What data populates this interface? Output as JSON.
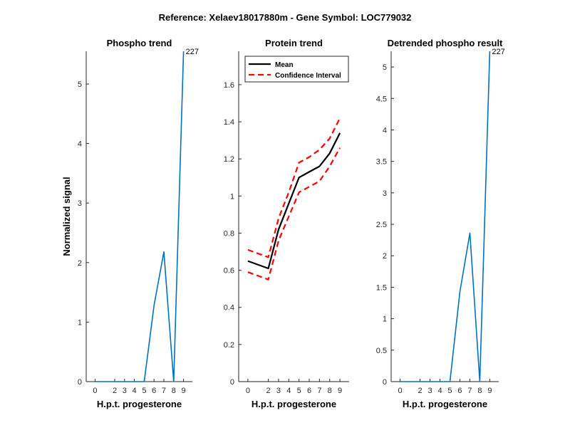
{
  "figure_title": "Reference:  Xelaev18017880m - Gene Symbol:  LOC779032",
  "colors": {
    "series": "#0072BD",
    "mean": "#000000",
    "ci": "#FF0000",
    "axis": "#262626"
  },
  "chart_data": [
    {
      "type": "line",
      "title": "Phospho trend",
      "xlabel": "H.p.t. progesterone",
      "ylabel": "Normalized signal",
      "x": [
        0,
        2,
        3,
        4,
        5,
        6,
        7,
        8,
        9
      ],
      "xticks": [
        "0",
        "2",
        "3",
        "4",
        "5",
        "6",
        "7",
        "8",
        "9"
      ],
      "ylim": [
        0,
        5.55
      ],
      "yticks": [
        0,
        1,
        2,
        3,
        4,
        5
      ],
      "ytick_labels": [
        "0",
        "1",
        "2",
        "3",
        "4",
        "5"
      ],
      "series": [
        {
          "name": "Phospho",
          "values": [
            0,
            0,
            0,
            0,
            0,
            1.28,
            2.18,
            0,
            5.55
          ]
        }
      ],
      "annotations": [
        {
          "text": "227",
          "x": 9,
          "y": 5.55
        }
      ]
    },
    {
      "type": "line",
      "title": "Protein trend",
      "xlabel": "H.p.t. progesterone",
      "ylabel": "",
      "x": [
        0,
        2,
        3,
        4,
        5,
        6,
        7,
        8,
        9
      ],
      "xticks": [
        "0",
        "2",
        "3",
        "4",
        "5",
        "6",
        "7",
        "8",
        "9"
      ],
      "ylim": [
        0,
        1.78
      ],
      "yticks": [
        0,
        0.2,
        0.4,
        0.6,
        0.8,
        1,
        1.2,
        1.4,
        1.6
      ],
      "ytick_labels": [
        "0",
        "0.2",
        "0.4",
        "0.6",
        "0.8",
        "1",
        "1.2",
        "1.4",
        "1.6"
      ],
      "series": [
        {
          "name": "Mean",
          "values": [
            0.65,
            0.61,
            0.82,
            0.96,
            1.1,
            1.13,
            1.16,
            1.23,
            1.34
          ]
        },
        {
          "name": "Upper CI",
          "values": [
            0.71,
            0.67,
            0.88,
            1.02,
            1.18,
            1.21,
            1.25,
            1.31,
            1.42
          ]
        },
        {
          "name": "Lower CI",
          "values": [
            0.59,
            0.55,
            0.76,
            0.89,
            1.02,
            1.05,
            1.08,
            1.16,
            1.26
          ]
        }
      ],
      "legend": {
        "position": "top-left",
        "entries": [
          {
            "label": "Mean",
            "style": "solid"
          },
          {
            "label": "Confidence Interval",
            "style": "dashed"
          }
        ]
      }
    },
    {
      "type": "line",
      "title": "Detrended phospho result",
      "xlabel": "H.p.t. progesterone",
      "ylabel": "",
      "x": [
        0,
        2,
        3,
        4,
        5,
        6,
        7,
        8,
        9
      ],
      "xticks": [
        "0",
        "2",
        "3",
        "4",
        "5",
        "6",
        "7",
        "8",
        "9"
      ],
      "ylim": [
        0,
        5.25
      ],
      "yticks": [
        0,
        0.5,
        1,
        1.5,
        2,
        2.5,
        3,
        3.5,
        4,
        4.5,
        5
      ],
      "ytick_labels": [
        "0",
        "0.5",
        "1",
        "1.5",
        "2",
        "2.5",
        "3",
        "3.5",
        "4",
        "4.5",
        "5"
      ],
      "series": [
        {
          "name": "Detrended",
          "values": [
            0,
            0,
            0,
            0,
            0,
            1.43,
            2.36,
            0,
            5.25
          ]
        }
      ],
      "annotations": [
        {
          "text": "227",
          "x": 9,
          "y": 5.25
        }
      ]
    }
  ]
}
